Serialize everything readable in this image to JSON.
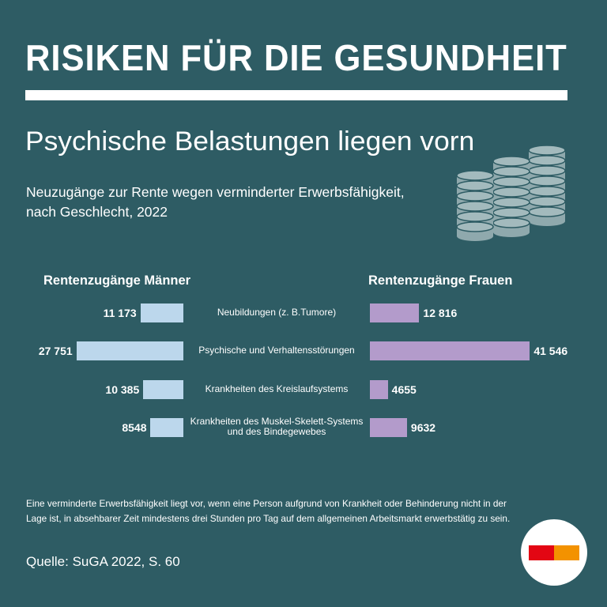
{
  "chart_data": {
    "type": "butterfly-bar",
    "title": "RISIKEN FÜR DIE GESUNDHEIT",
    "subtitle": "Psychische Belastungen liegen vorn",
    "description": [
      "Neuzugänge zur Rente wegen verminderter Erwerbsfähigkeit,",
      "nach Geschlecht, 2022"
    ],
    "categories": [
      "Neubildungen (z. B.Tumore)",
      "Psychische und Verhaltensstörungen",
      "Krankheiten des Kreislaufsystems",
      "Krankheiten des Muskel-Skelett-Systems\nund des Bindegewebes"
    ],
    "series": [
      {
        "name": "Rentenzugänge Männer",
        "color": "#bcd7ec",
        "values": [
          11173,
          27751,
          10385,
          8548
        ],
        "value_labels": [
          "11 173",
          "27 751",
          "10 385",
          "8548"
        ]
      },
      {
        "name": "Rentenzugänge Frauen",
        "color": "#b39bcb",
        "values": [
          12816,
          41546,
          4655,
          9632
        ],
        "value_labels": [
          "12 816",
          "41 546",
          "4655",
          "9632"
        ]
      }
    ],
    "footnote": [
      "Eine verminderte Erwerbsfähigkeit liegt vor, wenn eine Person aufgrund von Krankheit oder Behinderung nicht in der",
      "Lage ist, in absehbarer Zeit mindestens drei Stunden pro Tag auf dem allgemeinen Arbeitsmarkt erwerbstätig zu sein."
    ],
    "source": "Quelle: SuGA 2022, S. 60"
  }
}
